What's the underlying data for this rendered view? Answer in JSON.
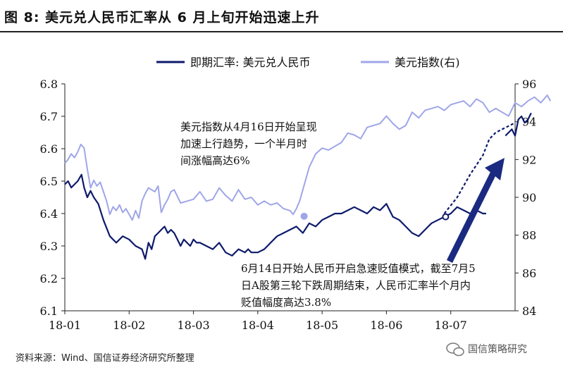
{
  "title": "图  8:  美元兑人民币汇率从 6 月上旬开始迅速上升",
  "source": "资料来源：Wind、国信证券经济研究所整理",
  "watermark": "国信策略研究",
  "colors": {
    "cny": "#0d1a6b",
    "dxy": "#9fa6e8",
    "arrow": "#1a2a80"
  },
  "chart_data": {
    "type": "line",
    "xlabel": "",
    "ylabel": "",
    "legend": {
      "position": "top",
      "entries": [
        "即期汇率: 美元兑人民币",
        "美元指数(右)"
      ]
    },
    "x_ticks": [
      "18-01",
      "18-02",
      "18-03",
      "18-04",
      "18-05",
      "18-06",
      "18-07"
    ],
    "y_left": {
      "ticks": [
        "6.1",
        "6.2",
        "6.3",
        "6.4",
        "6.5",
        "6.6",
        "6.7",
        "6.8"
      ],
      "lim": [
        6.1,
        6.8
      ]
    },
    "y_right": {
      "ticks": [
        "84",
        "86",
        "88",
        "90",
        "92",
        "94",
        "96"
      ],
      "lim": [
        84,
        96
      ]
    },
    "x_range_months": [
      0,
      7
    ],
    "series": [
      {
        "name": "即期汇率: 美元兑人民币",
        "axis": "left",
        "x": [
          0.0,
          0.05,
          0.1,
          0.15,
          0.2,
          0.26,
          0.3,
          0.35,
          0.4,
          0.45,
          0.52,
          0.6,
          0.7,
          0.8,
          0.9,
          1.0,
          1.1,
          1.2,
          1.25,
          1.3,
          1.35,
          1.4,
          1.45,
          1.5,
          1.55,
          1.6,
          1.65,
          1.7,
          1.75,
          1.8,
          1.85,
          1.9,
          1.95,
          2.0,
          2.05,
          2.1,
          2.2,
          2.3,
          2.4,
          2.5,
          2.6,
          2.7,
          2.8,
          2.85,
          2.9,
          3.0,
          3.1,
          3.2,
          3.3,
          3.4,
          3.5,
          3.6,
          3.7,
          3.8,
          3.9,
          4.0,
          4.1,
          4.2,
          4.3,
          4.4,
          4.5,
          4.6,
          4.7,
          4.8,
          4.9,
          5.0,
          5.1,
          5.2,
          5.3,
          5.4,
          5.5,
          5.6,
          5.7,
          5.8,
          5.9,
          6.0,
          6.1,
          6.2,
          6.3,
          6.4,
          6.5,
          6.55
        ],
        "y": [
          6.49,
          6.5,
          6.48,
          6.49,
          6.5,
          6.52,
          6.48,
          6.45,
          6.47,
          6.45,
          6.43,
          6.38,
          6.33,
          6.31,
          6.33,
          6.32,
          6.3,
          6.29,
          6.26,
          6.31,
          6.29,
          6.33,
          6.34,
          6.35,
          6.36,
          6.34,
          6.35,
          6.34,
          6.32,
          6.3,
          6.32,
          6.31,
          6.3,
          6.32,
          6.31,
          6.31,
          6.3,
          6.29,
          6.31,
          6.28,
          6.27,
          6.29,
          6.28,
          6.29,
          6.28,
          6.28,
          6.29,
          6.31,
          6.33,
          6.34,
          6.35,
          6.36,
          6.34,
          6.37,
          6.36,
          6.38,
          6.39,
          6.4,
          6.4,
          6.41,
          6.42,
          6.41,
          6.4,
          6.42,
          6.41,
          6.43,
          6.39,
          6.38,
          6.36,
          6.34,
          6.33,
          6.35,
          6.37,
          6.38,
          6.39,
          6.4,
          6.42,
          6.41,
          6.4,
          6.41,
          6.4,
          6.4
        ],
        "note": ""
      },
      {
        "name": "dashed-segment",
        "axis": "left",
        "dashed": true,
        "x": [
          5.9,
          6.1,
          6.3,
          6.5,
          6.6,
          6.7,
          6.8,
          6.9,
          7.0
        ],
        "y": [
          6.4,
          6.45,
          6.52,
          6.58,
          6.63,
          6.65,
          6.66,
          6.67,
          6.68
        ],
        "note": ""
      },
      {
        "name": "cny-tail",
        "axis": "left",
        "x": [
          6.85,
          6.9,
          6.95,
          7.0,
          7.05,
          7.1,
          7.15,
          7.2,
          7.25
        ],
        "y": [
          6.64,
          6.65,
          6.66,
          6.64,
          6.69,
          6.7,
          6.68,
          6.69,
          6.71
        ],
        "note": ""
      },
      {
        "name": "美元指数(右)",
        "axis": "right",
        "x": [
          0.0,
          0.05,
          0.1,
          0.15,
          0.2,
          0.25,
          0.3,
          0.35,
          0.4,
          0.45,
          0.5,
          0.55,
          0.6,
          0.65,
          0.7,
          0.75,
          0.8,
          0.85,
          0.9,
          0.95,
          1.0,
          1.05,
          1.1,
          1.15,
          1.2,
          1.25,
          1.3,
          1.35,
          1.4,
          1.45,
          1.5,
          1.55,
          1.6,
          1.65,
          1.7,
          1.8,
          1.9,
          2.0,
          2.1,
          2.2,
          2.3,
          2.4,
          2.5,
          2.6,
          2.7,
          2.8,
          2.9,
          3.0,
          3.1,
          3.2,
          3.3,
          3.4,
          3.5,
          3.55,
          3.6,
          3.65,
          3.7,
          3.75,
          3.8,
          3.9,
          4.0,
          4.1,
          4.2,
          4.3,
          4.4,
          4.5,
          4.6,
          4.7,
          4.8,
          4.9,
          5.0,
          5.1,
          5.2,
          5.3,
          5.4,
          5.5,
          5.6,
          5.7,
          5.8,
          5.9,
          6.0,
          6.1,
          6.2,
          6.3,
          6.4,
          6.5,
          6.6,
          6.7,
          6.8,
          6.9,
          7.0,
          7.1,
          7.2,
          7.3,
          7.4,
          7.5,
          7.55
        ],
        "y": [
          91.8,
          92.0,
          92.3,
          92.1,
          92.4,
          92.8,
          92.6,
          91.5,
          90.5,
          90.9,
          90.6,
          90.8,
          90.3,
          89.8,
          89.1,
          89.5,
          89.3,
          89.6,
          89.2,
          89.4,
          89.1,
          88.8,
          89.3,
          88.9,
          89.8,
          90.2,
          90.5,
          90.4,
          90.3,
          90.6,
          89.2,
          89.6,
          89.9,
          90.3,
          90.4,
          89.7,
          89.8,
          89.9,
          90.3,
          89.8,
          89.9,
          90.5,
          90.1,
          89.8,
          90.4,
          89.9,
          90.0,
          89.6,
          89.8,
          89.6,
          89.7,
          89.4,
          89.3,
          89.1,
          89.4,
          89.8,
          90.4,
          91.0,
          91.6,
          92.3,
          92.6,
          92.5,
          92.7,
          92.9,
          93.4,
          93.3,
          93.1,
          93.7,
          93.8,
          93.9,
          94.3,
          93.9,
          93.6,
          93.8,
          94.5,
          94.2,
          94.6,
          94.7,
          94.8,
          94.6,
          94.9,
          95.0,
          95.1,
          94.8,
          95.2,
          95.0,
          94.5,
          94.7,
          94.5,
          94.3,
          95.0,
          94.8,
          95.1,
          95.3,
          95.0,
          95.4,
          95.1
        ],
        "note": ""
      }
    ],
    "marker_points": [
      {
        "axis": "right",
        "x": 3.72,
        "y": 89.0,
        "label": ""
      },
      {
        "axis": "left",
        "x": 5.92,
        "y": 6.39,
        "label": ""
      }
    ],
    "annotations": [
      {
        "lines": [
          "美元指数从4月16日开始呈现",
          "加速上行趋势，一个半月时",
          "间涨幅高达6%"
        ]
      },
      {
        "lines": [
          "6月14日开始人民币开启急速贬值模式，截至7月5",
          "日A股第三轮下跌周期结束，人民币汇率半个月内",
          "贬值幅度高达3.8%"
        ]
      }
    ]
  }
}
